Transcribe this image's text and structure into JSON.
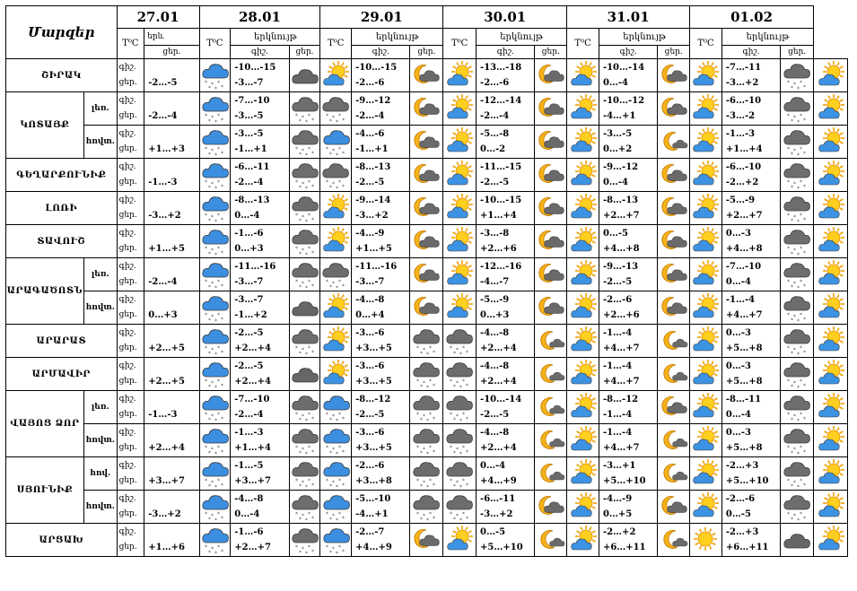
{
  "header": {
    "corner": "Մարզեր",
    "dates": [
      "27.01",
      "28.01",
      "29.01",
      "30.01",
      "31.01",
      "01.02"
    ],
    "temp_label": "T⁰C",
    "sky_label": "երկնույթ",
    "sky_label_short": "երև",
    "night": "գիշ.",
    "day": "ցեր."
  },
  "regions": [
    {
      "name": "ՇԻՐԱԿ",
      "rows": [
        {
          "sub": "",
          "d27": {
            "t": "-2…-5",
            "i": "snow"
          },
          "days": [
            {
              "t": [
                "-10…-15",
                "-3…-7"
              ],
              "i": [
                "cloud",
                "sunny-cloud"
              ]
            },
            {
              "t": [
                "-10…-15",
                "-2…-6"
              ],
              "i": [
                "moon-cloud",
                "sunny-cloud"
              ]
            },
            {
              "t": [
                "-13…-18",
                "-2…-6"
              ],
              "i": [
                "moon-cloud",
                "sunny-cloud"
              ]
            },
            {
              "t": [
                "-10…-14",
                "0…-4"
              ],
              "i": [
                "moon-cloud",
                "sunny-cloud"
              ]
            },
            {
              "t": [
                "-7…-11",
                "-3…+2"
              ],
              "i": [
                "cloud-snow",
                "sunny-cloud"
              ]
            }
          ]
        }
      ]
    },
    {
      "name": "ԿՈՏԱՅՔ",
      "rows": [
        {
          "sub": "լեռ.",
          "d27": {
            "t": "-2…-4",
            "i": "snow"
          },
          "days": [
            {
              "t": [
                "-7…-10",
                "-3…-5"
              ],
              "i": [
                "cloud-snow",
                "cloud-snow"
              ]
            },
            {
              "t": [
                "-9…-12",
                "-2…-4"
              ],
              "i": [
                "moon-cloud",
                "sunny-cloud"
              ]
            },
            {
              "t": [
                "-12…-14",
                "-2…-4"
              ],
              "i": [
                "moon-cloud",
                "sunny-cloud"
              ]
            },
            {
              "t": [
                "-10…-12",
                "-4…+1"
              ],
              "i": [
                "moon-cloud",
                "sunny-cloud"
              ]
            },
            {
              "t": [
                "-6…-10",
                "-3…-2"
              ],
              "i": [
                "cloud-snow",
                "sunny-cloud"
              ]
            }
          ]
        },
        {
          "sub": "հովտ.",
          "d27": {
            "t": "+1…+3",
            "i": "snow"
          },
          "days": [
            {
              "t": [
                "-3…-5",
                "-1…+1"
              ],
              "i": [
                "cloud-snow",
                "snow"
              ]
            },
            {
              "t": [
                "-4…-6",
                "-1…+1"
              ],
              "i": [
                "moon-cloud",
                "sunny-cloud"
              ]
            },
            {
              "t": [
                "-5…-8",
                "0…-2"
              ],
              "i": [
                "moon-cloud",
                "sunny-cloud"
              ]
            },
            {
              "t": [
                "-3…-5",
                "0…+2"
              ],
              "i": [
                "moon",
                "sunny-cloud"
              ]
            },
            {
              "t": [
                "-1…-3",
                "+1…+4"
              ],
              "i": [
                "cloud-snow",
                "sunny-cloud"
              ]
            }
          ]
        }
      ]
    },
    {
      "name": "ԳԵՂԱՐՔՈՒՆԻՔ",
      "rows": [
        {
          "sub": "",
          "d27": {
            "t": "-1…-3",
            "i": "snow"
          },
          "days": [
            {
              "t": [
                "-6…-11",
                "-2…-4"
              ],
              "i": [
                "cloud-snow",
                "cloud-snow"
              ]
            },
            {
              "t": [
                "-8…-13",
                "-2…-5"
              ],
              "i": [
                "moon-cloud",
                "sunny-cloud"
              ]
            },
            {
              "t": [
                "-11…-15",
                "-2…-5"
              ],
              "i": [
                "moon-cloud",
                "sunny-cloud"
              ]
            },
            {
              "t": [
                "-9…-12",
                "0…-4"
              ],
              "i": [
                "moon-cloud",
                "sunny-cloud"
              ]
            },
            {
              "t": [
                "-6…-10",
                "-2…+2"
              ],
              "i": [
                "cloud-snow",
                "sunny-cloud"
              ]
            }
          ]
        }
      ]
    },
    {
      "name": "ԼՈՌԻ",
      "rows": [
        {
          "sub": "",
          "d27": {
            "t": "-3…+2",
            "i": "snow"
          },
          "days": [
            {
              "t": [
                "-8…-13",
                "0…-4"
              ],
              "i": [
                "cloud-snow",
                "sunny-cloud"
              ]
            },
            {
              "t": [
                "-9…-14",
                "-3…+2"
              ],
              "i": [
                "moon-cloud",
                "sunny-cloud"
              ]
            },
            {
              "t": [
                "-10…-15",
                "+1…+4"
              ],
              "i": [
                "moon-cloud",
                "sunny-cloud"
              ]
            },
            {
              "t": [
                "-8…-13",
                "+2…+7"
              ],
              "i": [
                "moon-cloud",
                "sunny-cloud"
              ]
            },
            {
              "t": [
                "-5…-9",
                "+2…+7"
              ],
              "i": [
                "cloud-snow",
                "sunny-cloud"
              ]
            }
          ]
        }
      ]
    },
    {
      "name": "ՏԱՎՈՒՇ",
      "rows": [
        {
          "sub": "",
          "d27": {
            "t": "+1…+5",
            "i": "snow"
          },
          "days": [
            {
              "t": [
                "-1…-6",
                "0…+3"
              ],
              "i": [
                "cloud-snow",
                "sunny-cloud"
              ]
            },
            {
              "t": [
                "-4…-9",
                "+1…+5"
              ],
              "i": [
                "moon-cloud",
                "sunny-cloud"
              ]
            },
            {
              "t": [
                "-3…-8",
                "+2…+6"
              ],
              "i": [
                "moon-cloud",
                "sunny-cloud"
              ]
            },
            {
              "t": [
                "0…-5",
                "+4…+8"
              ],
              "i": [
                "moon-cloud",
                "sunny-cloud"
              ]
            },
            {
              "t": [
                "0…-3",
                "+4…+8"
              ],
              "i": [
                "cloud-snow",
                "sunny-cloud"
              ]
            }
          ]
        }
      ]
    },
    {
      "name": "ԱՐԱԳԱԾՈՏՆ",
      "rows": [
        {
          "sub": "լեռ.",
          "d27": {
            "t": "-2…-4",
            "i": "snow"
          },
          "days": [
            {
              "t": [
                "-11…-16",
                "-3…-7"
              ],
              "i": [
                "cloud-snow",
                "cloud-snow"
              ]
            },
            {
              "t": [
                "-11…-16",
                "-3…-7"
              ],
              "i": [
                "moon-cloud",
                "sunny-cloud"
              ]
            },
            {
              "t": [
                "-12…-16",
                "-4…-7"
              ],
              "i": [
                "moon-cloud",
                "sunny-cloud"
              ]
            },
            {
              "t": [
                "-9…-13",
                "-2…-5"
              ],
              "i": [
                "moon-cloud",
                "sunny-cloud"
              ]
            },
            {
              "t": [
                "-7…-10",
                "0…-4"
              ],
              "i": [
                "cloud-snow",
                "sunny-cloud"
              ]
            }
          ]
        },
        {
          "sub": "հովտ.",
          "d27": {
            "t": "0…+3",
            "i": "snow"
          },
          "days": [
            {
              "t": [
                "-3…-7",
                "-1…+2"
              ],
              "i": [
                "cloud",
                "sunny-cloud"
              ]
            },
            {
              "t": [
                "-4…-8",
                "0…+4"
              ],
              "i": [
                "moon-cloud",
                "sunny-cloud"
              ]
            },
            {
              "t": [
                "-5…-9",
                "0…+3"
              ],
              "i": [
                "moon-cloud",
                "sunny-cloud"
              ]
            },
            {
              "t": [
                "-2…-6",
                "+2…+6"
              ],
              "i": [
                "moon-cloud",
                "sunny-cloud"
              ]
            },
            {
              "t": [
                "-1…-4",
                "+4…+7"
              ],
              "i": [
                "cloud-snow",
                "sunny-cloud"
              ]
            }
          ]
        }
      ]
    },
    {
      "name": "ԱՐԱՐԱՏ",
      "rows": [
        {
          "sub": "",
          "d27": {
            "t": "+2…+5",
            "i": "snow"
          },
          "days": [
            {
              "t": [
                "-2…-5",
                "+2…+4"
              ],
              "i": [
                "cloud-snow",
                "sunny-cloud"
              ]
            },
            {
              "t": [
                "-3…-6",
                "+3…+5"
              ],
              "i": [
                "cloud-snow",
                "cloud-snow"
              ]
            },
            {
              "t": [
                "-4…-8",
                "+2…+4"
              ],
              "i": [
                "moon",
                "sunny-cloud"
              ]
            },
            {
              "t": [
                "-1…-4",
                "+4…+7"
              ],
              "i": [
                "moon",
                "sunny-cloud"
              ]
            },
            {
              "t": [
                "0…-3",
                "+5…+8"
              ],
              "i": [
                "cloud-snow",
                "sunny-cloud"
              ]
            }
          ]
        }
      ]
    },
    {
      "name": "ԱՐՄԱՎԻՐ",
      "rows": [
        {
          "sub": "",
          "d27": {
            "t": "+2…+5",
            "i": "snow"
          },
          "days": [
            {
              "t": [
                "-2…-5",
                "+2…+4"
              ],
              "i": [
                "cloud",
                "sunny-cloud"
              ]
            },
            {
              "t": [
                "-3…-6",
                "+3…+5"
              ],
              "i": [
                "cloud-snow",
                "cloud-snow"
              ]
            },
            {
              "t": [
                "-4…-8",
                "+2…+4"
              ],
              "i": [
                "moon",
                "sunny-cloud"
              ]
            },
            {
              "t": [
                "-1…-4",
                "+4…+7"
              ],
              "i": [
                "moon",
                "sunny-cloud"
              ]
            },
            {
              "t": [
                "0…-3",
                "+5…+8"
              ],
              "i": [
                "cloud-snow",
                "sunny-cloud"
              ]
            }
          ]
        }
      ]
    },
    {
      "name": "ՎԱՅՈՑ ՁՈՐ",
      "rows": [
        {
          "sub": "լեռ.",
          "d27": {
            "t": "-1…-3",
            "i": "snow"
          },
          "days": [
            {
              "t": [
                "-7…-10",
                "-2…-4"
              ],
              "i": [
                "cloud-snow",
                "snow"
              ]
            },
            {
              "t": [
                "-8…-12",
                "-2…-5"
              ],
              "i": [
                "cloud-snow",
                "cloud-snow"
              ]
            },
            {
              "t": [
                "-10…-14",
                "-2…-5"
              ],
              "i": [
                "moon",
                "sunny-cloud"
              ]
            },
            {
              "t": [
                "-8…-12",
                "-1…-4"
              ],
              "i": [
                "moon-cloud",
                "sunny-cloud"
              ]
            },
            {
              "t": [
                "-8…-11",
                "0…-4"
              ],
              "i": [
                "cloud-snow",
                "sunny-cloud"
              ]
            }
          ]
        },
        {
          "sub": "հովտ.",
          "d27": {
            "t": "+2…+4",
            "i": "snow"
          },
          "days": [
            {
              "t": [
                "-1…-3",
                "+1…+4"
              ],
              "i": [
                "cloud-snow",
                "snow"
              ]
            },
            {
              "t": [
                "-3…-6",
                "+3…+5"
              ],
              "i": [
                "cloud-snow",
                "cloud-snow"
              ]
            },
            {
              "t": [
                "-4…-8",
                "+2…+4"
              ],
              "i": [
                "moon",
                "sunny-cloud"
              ]
            },
            {
              "t": [
                "-1…-4",
                "+4…+7"
              ],
              "i": [
                "moon",
                "sunny-cloud"
              ]
            },
            {
              "t": [
                "0…-3",
                "+5…+8"
              ],
              "i": [
                "cloud-snow",
                "sunny-cloud"
              ]
            }
          ]
        }
      ]
    },
    {
      "name": "ՍՅՈՒՆԻՔ",
      "rows": [
        {
          "sub": "հով.",
          "d27": {
            "t": "+3…+7",
            "i": "snow"
          },
          "days": [
            {
              "t": [
                "-1…-5",
                "+3…+7"
              ],
              "i": [
                "cloud-snow",
                "snow"
              ]
            },
            {
              "t": [
                "-2…-6",
                "+3…+8"
              ],
              "i": [
                "cloud-snow",
                "cloud-snow"
              ]
            },
            {
              "t": [
                "0…-4",
                "+4…+9"
              ],
              "i": [
                "moon",
                "sunny-cloud"
              ]
            },
            {
              "t": [
                "-3…+1",
                "+5…+10"
              ],
              "i": [
                "moon",
                "sunny-cloud"
              ]
            },
            {
              "t": [
                "-2…+3",
                "+5…+10"
              ],
              "i": [
                "cloud-snow",
                "sunny-cloud"
              ]
            }
          ]
        },
        {
          "sub": "հովտ.",
          "d27": {
            "t": "-3…+2",
            "i": "snow"
          },
          "days": [
            {
              "t": [
                "-4…-8",
                "0…-4"
              ],
              "i": [
                "cloud-snow",
                "snow"
              ]
            },
            {
              "t": [
                "-5…-10",
                "-4…+1"
              ],
              "i": [
                "cloud-snow",
                "cloud-snow"
              ]
            },
            {
              "t": [
                "-6…-11",
                "-3…+2"
              ],
              "i": [
                "moon-cloud",
                "sunny-cloud"
              ]
            },
            {
              "t": [
                "-4…-9",
                "0…+5"
              ],
              "i": [
                "moon-cloud",
                "sunny-cloud"
              ]
            },
            {
              "t": [
                "-2…-6",
                "0…-5"
              ],
              "i": [
                "cloud-snow",
                "sunny-cloud"
              ]
            }
          ]
        }
      ]
    },
    {
      "name": "ԱՐՑԱԽ",
      "rows": [
        {
          "sub": "",
          "d27": {
            "t": "+1…+6",
            "i": "snow"
          },
          "days": [
            {
              "t": [
                "-1…-6",
                "+2…+7"
              ],
              "i": [
                "cloud-snow",
                "snow"
              ]
            },
            {
              "t": [
                "-2…-7",
                "+4…+9"
              ],
              "i": [
                "moon-cloud",
                "sunny-cloud"
              ]
            },
            {
              "t": [
                "0…-5",
                "+5…+10"
              ],
              "i": [
                "moon",
                "sunny-cloud"
              ]
            },
            {
              "t": [
                "-2…+2",
                "+6…+11"
              ],
              "i": [
                "moon",
                "sunny"
              ]
            },
            {
              "t": [
                "-2…+3",
                "+6…+11"
              ],
              "i": [
                "cloud",
                "sunny-cloud"
              ]
            }
          ]
        }
      ]
    }
  ]
}
